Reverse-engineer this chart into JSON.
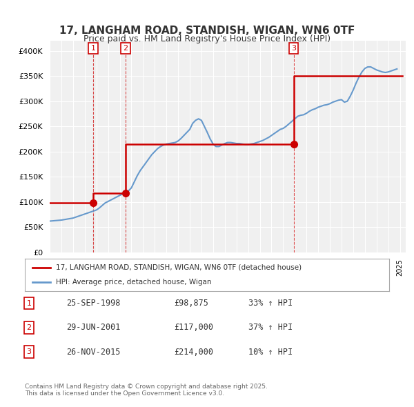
{
  "title": "17, LANGHAM ROAD, STANDISH, WIGAN, WN6 0TF",
  "subtitle": "Price paid vs. HM Land Registry's House Price Index (HPI)",
  "title_fontsize": 11,
  "subtitle_fontsize": 9,
  "sale_color": "#cc0000",
  "hpi_color": "#6699cc",
  "vline_color": "#cc0000",
  "background_color": "#ffffff",
  "plot_bg_color": "#f0f0f0",
  "grid_color": "#ffffff",
  "ylim": [
    0,
    420000
  ],
  "yticks": [
    0,
    50000,
    100000,
    150000,
    200000,
    250000,
    300000,
    350000,
    400000
  ],
  "ylabel_format": "£{0}K",
  "sales": [
    {
      "date_num": 1998.73,
      "price": 98875,
      "label": "1"
    },
    {
      "date_num": 2001.49,
      "price": 117000,
      "label": "2"
    },
    {
      "date_num": 2015.9,
      "price": 214000,
      "label": "3"
    }
  ],
  "legend_entries": [
    {
      "label": "17, LANGHAM ROAD, STANDISH, WIGAN, WN6 0TF (detached house)",
      "color": "#cc0000"
    },
    {
      "label": "HPI: Average price, detached house, Wigan",
      "color": "#6699cc"
    }
  ],
  "table_rows": [
    {
      "num": "1",
      "date": "25-SEP-1998",
      "price": "£98,875",
      "hpi": "33% ↑ HPI"
    },
    {
      "num": "2",
      "date": "29-JUN-2001",
      "price": "£117,000",
      "hpi": "37% ↑ HPI"
    },
    {
      "num": "3",
      "date": "26-NOV-2015",
      "price": "£214,000",
      "hpi": "10% ↑ HPI"
    }
  ],
  "footnote": "Contains HM Land Registry data © Crown copyright and database right 2025.\nThis data is licensed under the Open Government Licence v3.0.",
  "hpi_data": {
    "years": [
      1995.0,
      1995.25,
      1995.5,
      1995.75,
      1996.0,
      1996.25,
      1996.5,
      1996.75,
      1997.0,
      1997.25,
      1997.5,
      1997.75,
      1998.0,
      1998.25,
      1998.5,
      1998.75,
      1999.0,
      1999.25,
      1999.5,
      1999.75,
      2000.0,
      2000.25,
      2000.5,
      2000.75,
      2001.0,
      2001.25,
      2001.5,
      2001.75,
      2002.0,
      2002.25,
      2002.5,
      2002.75,
      2003.0,
      2003.25,
      2003.5,
      2003.75,
      2004.0,
      2004.25,
      2004.5,
      2004.75,
      2005.0,
      2005.25,
      2005.5,
      2005.75,
      2006.0,
      2006.25,
      2006.5,
      2006.75,
      2007.0,
      2007.25,
      2007.5,
      2007.75,
      2008.0,
      2008.25,
      2008.5,
      2008.75,
      2009.0,
      2009.25,
      2009.5,
      2009.75,
      2010.0,
      2010.25,
      2010.5,
      2010.75,
      2011.0,
      2011.25,
      2011.5,
      2011.75,
      2012.0,
      2012.25,
      2012.5,
      2012.75,
      2013.0,
      2013.25,
      2013.5,
      2013.75,
      2014.0,
      2014.25,
      2014.5,
      2014.75,
      2015.0,
      2015.25,
      2015.5,
      2015.75,
      2016.0,
      2016.25,
      2016.5,
      2016.75,
      2017.0,
      2017.25,
      2017.5,
      2017.75,
      2018.0,
      2018.25,
      2018.5,
      2018.75,
      2019.0,
      2019.25,
      2019.5,
      2019.75,
      2020.0,
      2020.25,
      2020.5,
      2020.75,
      2021.0,
      2021.25,
      2021.5,
      2021.75,
      2022.0,
      2022.25,
      2022.5,
      2022.75,
      2023.0,
      2023.25,
      2023.5,
      2023.75,
      2024.0,
      2024.25,
      2024.5,
      2024.75
    ],
    "values": [
      62000,
      62500,
      63000,
      63500,
      64000,
      65000,
      66000,
      67000,
      68000,
      70000,
      72000,
      74000,
      76000,
      78000,
      80000,
      82000,
      84000,
      88000,
      93000,
      98000,
      101000,
      104000,
      107000,
      110000,
      113000,
      116000,
      119000,
      122000,
      128000,
      140000,
      152000,
      162000,
      170000,
      178000,
      186000,
      194000,
      200000,
      206000,
      210000,
      213000,
      215000,
      216000,
      217000,
      218000,
      221000,
      226000,
      232000,
      238000,
      244000,
      256000,
      262000,
      265000,
      262000,
      250000,
      238000,
      225000,
      215000,
      210000,
      210000,
      213000,
      216000,
      218000,
      218000,
      217000,
      216000,
      216000,
      215000,
      214000,
      214000,
      215000,
      216000,
      218000,
      220000,
      222000,
      225000,
      228000,
      232000,
      236000,
      240000,
      244000,
      246000,
      250000,
      255000,
      260000,
      265000,
      270000,
      272000,
      273000,
      276000,
      280000,
      283000,
      285000,
      288000,
      290000,
      292000,
      293000,
      295000,
      298000,
      300000,
      302000,
      303000,
      298000,
      300000,
      310000,
      322000,
      336000,
      348000,
      358000,
      365000,
      368000,
      368000,
      365000,
      362000,
      360000,
      358000,
      357000,
      358000,
      360000,
      362000,
      364000
    ]
  },
  "sale_line_data": {
    "years": [
      1995.0,
      1998.73,
      1998.73,
      2001.49,
      2001.49,
      2015.9,
      2015.9,
      2025.0
    ],
    "values": [
      98875,
      98875,
      117000,
      117000,
      214000,
      214000,
      350000,
      350000
    ]
  }
}
